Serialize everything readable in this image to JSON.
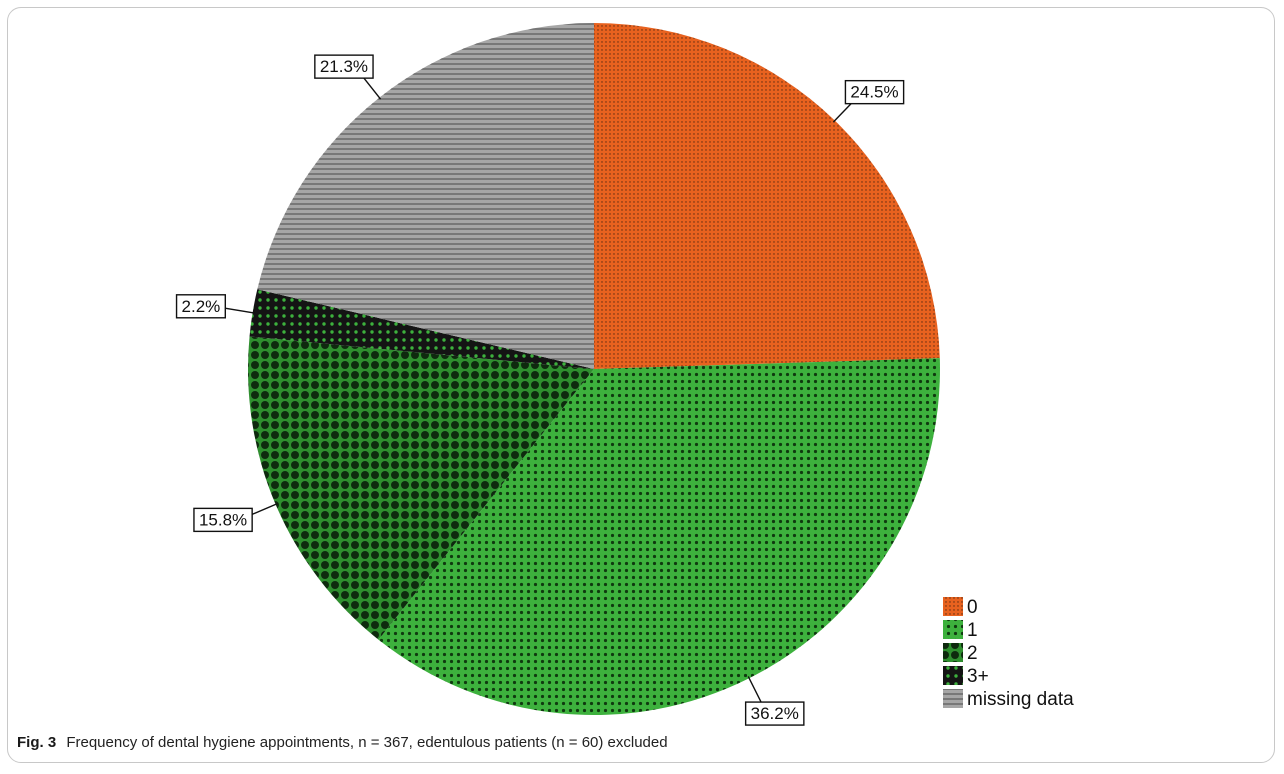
{
  "chart_data": {
    "type": "pie",
    "slices": [
      {
        "label": "0",
        "value": 24.5,
        "value_label": "24.5%",
        "color": "#e8621f",
        "pattern": "fine-dots"
      },
      {
        "label": "1",
        "value": 36.2,
        "value_label": "36.2%",
        "color": "#3db13d",
        "pattern": "dots"
      },
      {
        "label": "2",
        "value": 15.8,
        "value_label": "15.8%",
        "color": "#2a8a2a",
        "pattern": "large-dots"
      },
      {
        "label": "3+",
        "value": 2.2,
        "value_label": "2.2%",
        "color": "#1a1a1a",
        "pattern": "green-dots-on-black"
      },
      {
        "label": "missing data",
        "value": 21.3,
        "value_label": "21.3%",
        "color": "#a6a6a6",
        "pattern": "horizontal-lines"
      }
    ],
    "start_angle": "12 o'clock",
    "direction": "clockwise",
    "legend_position": "bottom-right"
  },
  "caption": {
    "fig_label": "Fig. 3",
    "text": "Frequency of dental hygiene appointments, n = 367, edentulous patients (n = 60) excluded"
  }
}
